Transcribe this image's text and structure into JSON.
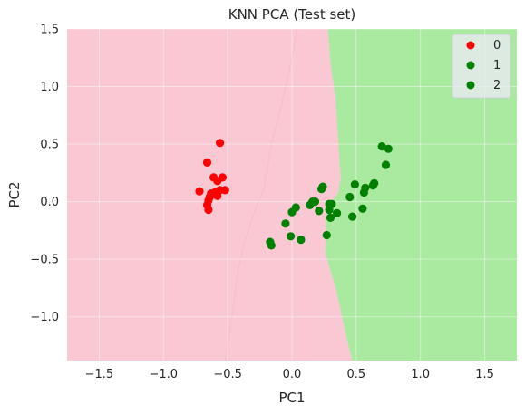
{
  "chart_data": {
    "type": "scatter",
    "title": "KNN PCA (Test set)",
    "xlabel": "PC1",
    "ylabel": "PC2",
    "xlim": [
      -1.75,
      1.75
    ],
    "ylim": [
      -1.38,
      1.5
    ],
    "xticks": [
      -1.5,
      -1.0,
      -0.5,
      0.0,
      0.5,
      1.0,
      1.5
    ],
    "xtick_labels": [
      "−1.5",
      "−1.0",
      "−0.5",
      "0.0",
      "0.5",
      "1.0",
      "1.5"
    ],
    "yticks": [
      -1.0,
      -0.5,
      0.0,
      0.5,
      1.0,
      1.5
    ],
    "ytick_labels": [
      "−1.0",
      "−0.5",
      "0.0",
      "0.5",
      "1.0",
      "1.5"
    ],
    "grid": true,
    "legend_position": "top-right",
    "region_colors": {
      "class_0": "#f9c8d3",
      "class_1": "#a9e9a0"
    },
    "decision_boundary_left": [
      [
        -0.52,
        -1.38
      ],
      [
        -0.46,
        -0.95
      ],
      [
        -0.42,
        -0.6
      ],
      [
        -0.37,
        -0.35
      ],
      [
        -0.28,
        -0.05
      ],
      [
        -0.22,
        0.1
      ],
      [
        -0.16,
        0.5
      ],
      [
        -0.09,
        0.8
      ],
      [
        -0.02,
        1.15
      ],
      [
        0.01,
        1.3
      ],
      [
        0.04,
        1.5
      ]
    ],
    "decision_boundary": [
      [
        0.47,
        -1.38
      ],
      [
        0.44,
        -1.25
      ],
      [
        0.4,
        -1.05
      ],
      [
        0.34,
        -0.75
      ],
      [
        0.3,
        -0.6
      ],
      [
        0.26,
        -0.45
      ],
      [
        0.27,
        -0.3
      ],
      [
        0.26,
        -0.15
      ],
      [
        0.28,
        -0.05
      ],
      [
        0.36,
        0.08
      ],
      [
        0.38,
        0.2
      ],
      [
        0.37,
        0.35
      ],
      [
        0.36,
        0.55
      ],
      [
        0.35,
        0.7
      ],
      [
        0.34,
        0.9
      ],
      [
        0.32,
        1.05
      ],
      [
        0.3,
        1.2
      ],
      [
        0.29,
        1.35
      ],
      [
        0.28,
        1.5
      ]
    ],
    "series": [
      {
        "name": "0",
        "color": "#ff0000",
        "points": [
          [
            -0.56,
            0.51
          ],
          [
            -0.66,
            0.34
          ],
          [
            -0.61,
            0.21
          ],
          [
            -0.54,
            0.21
          ],
          [
            -0.58,
            0.18
          ],
          [
            -0.72,
            0.09
          ],
          [
            -0.52,
            0.1
          ],
          [
            -0.56,
            0.1
          ],
          [
            -0.6,
            0.08
          ],
          [
            -0.63,
            0.07
          ],
          [
            -0.58,
            0.05
          ],
          [
            -0.64,
            0.04
          ],
          [
            -0.65,
            0.01
          ],
          [
            -0.66,
            -0.03
          ],
          [
            -0.65,
            -0.07
          ]
        ]
      },
      {
        "name": "1",
        "color": "#008000",
        "points": [
          [
            0.7,
            0.48
          ],
          [
            0.75,
            0.46
          ],
          [
            0.73,
            0.32
          ],
          [
            0.64,
            0.16
          ],
          [
            0.63,
            0.14
          ],
          [
            0.49,
            0.15
          ],
          [
            0.57,
            0.12
          ],
          [
            0.56,
            0.08
          ],
          [
            0.23,
            0.11
          ],
          [
            0.24,
            0.13
          ],
          [
            0.45,
            0.04
          ],
          [
            0.18,
            0.0
          ],
          [
            0.16,
            0.0
          ],
          [
            0.14,
            -0.03
          ],
          [
            0.03,
            -0.05
          ],
          [
            0.0,
            -0.09
          ],
          [
            0.29,
            -0.02
          ],
          [
            0.31,
            -0.02
          ],
          [
            0.29,
            -0.07
          ],
          [
            0.21,
            -0.08
          ],
          [
            0.35,
            -0.1
          ],
          [
            0.55,
            -0.06
          ],
          [
            0.47,
            -0.13
          ],
          [
            0.3,
            -0.14
          ],
          [
            -0.05,
            -0.19
          ],
          [
            -0.01,
            -0.3
          ],
          [
            0.07,
            -0.33
          ],
          [
            0.27,
            -0.29
          ],
          [
            -0.17,
            -0.35
          ],
          [
            -0.16,
            -0.38
          ]
        ]
      }
    ],
    "legend": [
      {
        "label": "0",
        "color": "#ff0000"
      },
      {
        "label": "1",
        "color": "#008000"
      },
      {
        "label": "2",
        "color": "#008000"
      }
    ]
  }
}
